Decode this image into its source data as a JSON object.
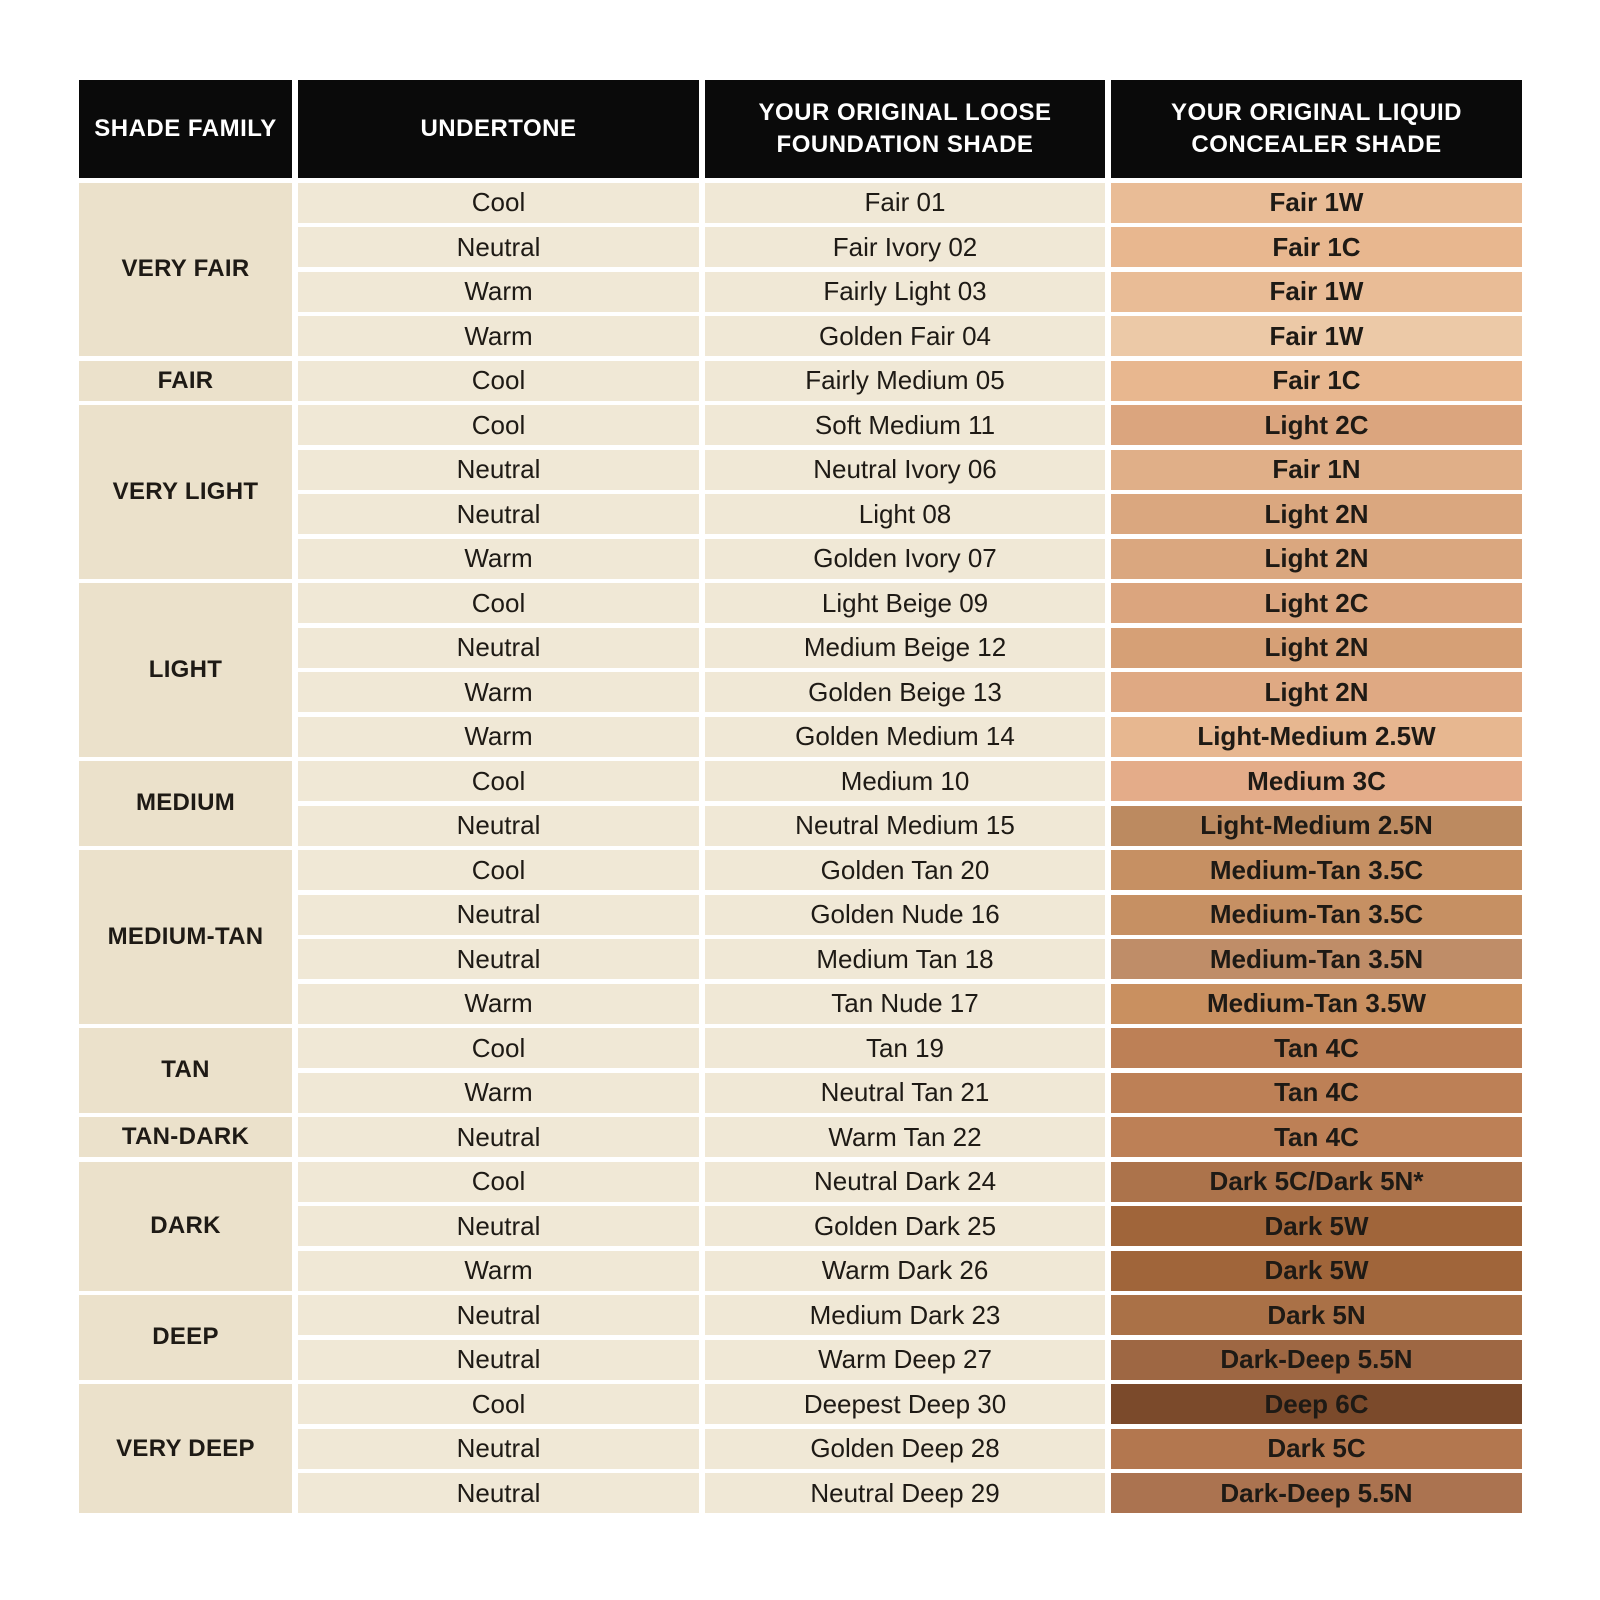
{
  "table": {
    "headers": [
      "SHADE FAMILY",
      "UNDERTONE",
      "YOUR ORIGINAL LOOSE FOUNDATION SHADE",
      "YOUR ORIGINAL LIQUID CONCEALER SHADE"
    ],
    "groups": [
      {
        "family": "VERY FAIR",
        "rows": [
          {
            "undertone": "Cool",
            "foundation": "Fair 01",
            "concealer": "Fair 1W",
            "swatch": "#e9bc96"
          },
          {
            "undertone": "Neutral",
            "foundation": "Fair Ivory 02",
            "concealer": "Fair 1C",
            "swatch": "#e8b78f"
          },
          {
            "undertone": "Warm",
            "foundation": "Fairly Light 03",
            "concealer": "Fair 1W",
            "swatch": "#e9bc96"
          },
          {
            "undertone": "Warm",
            "foundation": "Golden Fair 04",
            "concealer": "Fair 1W",
            "swatch": "#ecc9a7"
          }
        ]
      },
      {
        "family": "FAIR",
        "rows": [
          {
            "undertone": "Cool",
            "foundation": "Fairly Medium 05",
            "concealer": "Fair 1C",
            "swatch": "#e8b78f"
          }
        ]
      },
      {
        "family": "VERY LIGHT",
        "rows": [
          {
            "undertone": "Cool",
            "foundation": "Soft Medium 11",
            "concealer": "Light 2C",
            "swatch": "#dba57e"
          },
          {
            "undertone": "Neutral",
            "foundation": "Neutral Ivory 06",
            "concealer": "Fair 1N",
            "swatch": "#e0af88"
          },
          {
            "undertone": "Neutral",
            "foundation": "Light 08",
            "concealer": "Light 2N",
            "swatch": "#daa77f"
          },
          {
            "undertone": "Warm",
            "foundation": "Golden Ivory 07",
            "concealer": "Light 2N",
            "swatch": "#daa77f"
          }
        ]
      },
      {
        "family": "LIGHT",
        "rows": [
          {
            "undertone": "Cool",
            "foundation": "Light Beige 09",
            "concealer": "Light 2C",
            "swatch": "#dba57e"
          },
          {
            "undertone": "Neutral",
            "foundation": "Medium Beige 12",
            "concealer": "Light 2N",
            "swatch": "#d6a076"
          },
          {
            "undertone": "Warm",
            "foundation": "Golden Beige 13",
            "concealer": "Light 2N",
            "swatch": "#dfa983"
          },
          {
            "undertone": "Warm",
            "foundation": "Golden Medium 14",
            "concealer": "Light-Medium 2.5W",
            "swatch": "#e7b790"
          }
        ]
      },
      {
        "family": "MEDIUM",
        "rows": [
          {
            "undertone": "Cool",
            "foundation": "Medium 10",
            "concealer": "Medium 3C",
            "swatch": "#e4ac89"
          },
          {
            "undertone": "Neutral",
            "foundation": "Neutral Medium 15",
            "concealer": "Light-Medium 2.5N",
            "swatch": "#bc8a60"
          }
        ]
      },
      {
        "family": "MEDIUM-TAN",
        "rows": [
          {
            "undertone": "Cool",
            "foundation": "Golden Tan 20",
            "concealer": "Medium-Tan 3.5C",
            "swatch": "#c69063"
          },
          {
            "undertone": "Neutral",
            "foundation": "Golden Nude 16",
            "concealer": "Medium-Tan 3.5C",
            "swatch": "#c69063"
          },
          {
            "undertone": "Neutral",
            "foundation": "Medium Tan 18",
            "concealer": "Medium-Tan 3.5N",
            "swatch": "#bf8d68"
          },
          {
            "undertone": "Warm",
            "foundation": "Tan Nude 17",
            "concealer": "Medium-Tan 3.5W",
            "swatch": "#c99060"
          }
        ]
      },
      {
        "family": "TAN",
        "rows": [
          {
            "undertone": "Cool",
            "foundation": "Tan 19",
            "concealer": "Tan 4C",
            "swatch": "#bd8056"
          },
          {
            "undertone": "Warm",
            "foundation": "Neutral Tan 21",
            "concealer": "Tan 4C",
            "swatch": "#bd8056"
          }
        ]
      },
      {
        "family": "TAN-DARK",
        "rows": [
          {
            "undertone": "Neutral",
            "foundation": "Warm Tan 22",
            "concealer": "Tan 4C",
            "swatch": "#bd8056"
          }
        ]
      },
      {
        "family": "DARK",
        "rows": [
          {
            "undertone": "Cool",
            "foundation": "Neutral Dark 24",
            "concealer": "Dark 5C/Dark 5N*",
            "swatch": "#ac734b"
          },
          {
            "undertone": "Neutral",
            "foundation": "Golden Dark 25",
            "concealer": "Dark 5W",
            "swatch": "#a0653a"
          },
          {
            "undertone": "Warm",
            "foundation": "Warm Dark 26",
            "concealer": "Dark 5W",
            "swatch": "#a0653a"
          }
        ]
      },
      {
        "family": "DEEP",
        "rows": [
          {
            "undertone": "Neutral",
            "foundation": "Medium Dark 23",
            "concealer": "Dark 5N",
            "swatch": "#aa7147"
          },
          {
            "undertone": "Neutral",
            "foundation": "Warm Deep 27",
            "concealer": "Dark-Deep 5.5N",
            "swatch": "#9e6743"
          }
        ]
      },
      {
        "family": "VERY DEEP",
        "rows": [
          {
            "undertone": "Cool",
            "foundation": "Deepest Deep 30",
            "concealer": "Deep 6C",
            "swatch": "#7b4a2b"
          },
          {
            "undertone": "Neutral",
            "foundation": "Golden Deep 28",
            "concealer": "Dark 5C",
            "swatch": "#b3774f"
          },
          {
            "undertone": "Neutral",
            "foundation": "Neutral Deep 29",
            "concealer": "Dark-Deep 5.5N",
            "swatch": "#ab7350"
          }
        ]
      }
    ]
  },
  "colors": {
    "page_bg": "#ffffff",
    "header_bg": "#0a0a0a",
    "header_text": "#ffffff",
    "family_bg": "#ebe1cb",
    "cell_bg": "#f0e8d6",
    "body_text": "#1e1a15"
  },
  "chart_data": {
    "type": "table",
    "columns": [
      "SHADE FAMILY",
      "UNDERTONE",
      "YOUR ORIGINAL LOOSE FOUNDATION SHADE",
      "YOUR ORIGINAL LIQUID CONCEALER SHADE"
    ],
    "rows": [
      [
        "VERY FAIR",
        "Cool",
        "Fair 01",
        "Fair 1W"
      ],
      [
        "VERY FAIR",
        "Neutral",
        "Fair Ivory 02",
        "Fair 1C"
      ],
      [
        "VERY FAIR",
        "Warm",
        "Fairly Light 03",
        "Fair 1W"
      ],
      [
        "VERY FAIR",
        "Warm",
        "Golden Fair 04",
        "Fair 1W"
      ],
      [
        "FAIR",
        "Cool",
        "Fairly Medium 05",
        "Fair 1C"
      ],
      [
        "VERY LIGHT",
        "Cool",
        "Soft Medium 11",
        "Light 2C"
      ],
      [
        "VERY LIGHT",
        "Neutral",
        "Neutral Ivory 06",
        "Fair 1N"
      ],
      [
        "VERY LIGHT",
        "Neutral",
        "Light 08",
        "Light 2N"
      ],
      [
        "VERY LIGHT",
        "Warm",
        "Golden Ivory 07",
        "Light 2N"
      ],
      [
        "LIGHT",
        "Cool",
        "Light Beige 09",
        "Light 2C"
      ],
      [
        "LIGHT",
        "Neutral",
        "Medium Beige 12",
        "Light 2N"
      ],
      [
        "LIGHT",
        "Warm",
        "Golden Beige 13",
        "Light 2N"
      ],
      [
        "LIGHT",
        "Warm",
        "Golden Medium 14",
        "Light-Medium 2.5W"
      ],
      [
        "MEDIUM",
        "Cool",
        "Medium 10",
        "Medium 3C"
      ],
      [
        "MEDIUM",
        "Neutral",
        "Neutral Medium 15",
        "Light-Medium 2.5N"
      ],
      [
        "MEDIUM-TAN",
        "Cool",
        "Golden Tan 20",
        "Medium-Tan 3.5C"
      ],
      [
        "MEDIUM-TAN",
        "Neutral",
        "Golden Nude 16",
        "Medium-Tan 3.5C"
      ],
      [
        "MEDIUM-TAN",
        "Neutral",
        "Medium Tan 18",
        "Medium-Tan 3.5N"
      ],
      [
        "MEDIUM-TAN",
        "Warm",
        "Tan Nude 17",
        "Medium-Tan 3.5W"
      ],
      [
        "TAN",
        "Cool",
        "Tan 19",
        "Tan 4C"
      ],
      [
        "TAN",
        "Warm",
        "Neutral Tan 21",
        "Tan 4C"
      ],
      [
        "TAN-DARK",
        "Neutral",
        "Warm Tan 22",
        "Tan 4C"
      ],
      [
        "DARK",
        "Cool",
        "Neutral Dark 24",
        "Dark 5C/Dark 5N*"
      ],
      [
        "DARK",
        "Neutral",
        "Golden Dark 25",
        "Dark 5W"
      ],
      [
        "DARK",
        "Warm",
        "Warm Dark 26",
        "Dark 5W"
      ],
      [
        "DEEP",
        "Neutral",
        "Medium Dark 23",
        "Dark 5N"
      ],
      [
        "DEEP",
        "Neutral",
        "Warm Deep 27",
        "Dark-Deep 5.5N"
      ],
      [
        "VERY DEEP",
        "Cool",
        "Deepest Deep 30",
        "Deep 6C"
      ],
      [
        "VERY DEEP",
        "Neutral",
        "Golden Deep 28",
        "Dark 5C"
      ],
      [
        "VERY DEEP",
        "Neutral",
        "Neutral Deep 29",
        "Dark-Deep 5.5N"
      ]
    ]
  }
}
